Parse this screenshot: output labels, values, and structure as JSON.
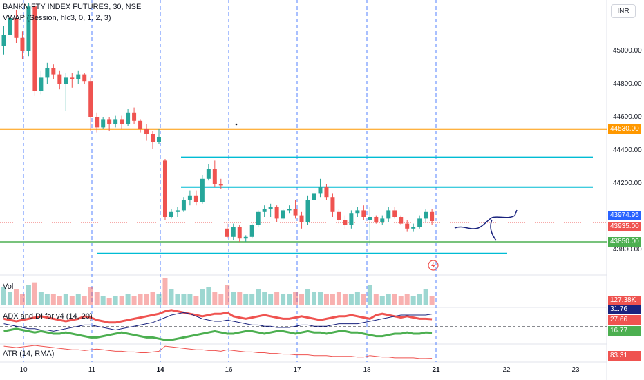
{
  "header": {
    "symbol_title": "BANKNIFTY INDEX FUTURES, 30, NSE",
    "indicator": "VWAP (Session, hlc3, 0, 1, 2, 3)",
    "currency": "INR"
  },
  "panes": {
    "vol_label": "Vol",
    "adx_label": "ADX and DI for v4 (14, 20)",
    "atr_label": "ATR (14, RMA)"
  },
  "chart_data": {
    "type": "candlestick",
    "ylim": [
      43720,
      45300
    ],
    "price_ticks": [
      "45000.00",
      "44800.00",
      "44600.00",
      "44400.00",
      "44200.00",
      "43800.00"
    ],
    "date_ticks": [
      "10",
      "11",
      "14",
      "16",
      "17",
      "18",
      "21",
      "22",
      "23"
    ],
    "badges": {
      "level_orange": "44530.00",
      "last_blue": "43974.95",
      "last_red": "43935.00",
      "level_green": "43850.00",
      "volume": "127.38K",
      "adx_a": "31.76",
      "adx_b": "27.66",
      "adx_c": "16.77",
      "atr": "83.31"
    },
    "levels": {
      "orange": 44530,
      "green": 43850,
      "cyan_1": 44360,
      "cyan_2": 44180,
      "cyan_3": 43780
    },
    "colors": {
      "up": "#26a69a",
      "down": "#ef5350",
      "orange": "#ff9800",
      "green": "#4caf50",
      "cyan": "#00bcd4",
      "blue": "#2962ff"
    },
    "candles": [
      [
        45030,
        45150,
        44980,
        45100
      ],
      [
        45100,
        45230,
        45080,
        45200
      ],
      [
        45200,
        45250,
        45050,
        45080
      ],
      [
        45080,
        45120,
        44950,
        45000
      ],
      [
        45000,
        45290,
        44970,
        45270
      ],
      [
        45270,
        45290,
        44730,
        44760
      ],
      [
        44760,
        44880,
        44740,
        44840
      ],
      [
        44840,
        44930,
        44800,
        44900
      ],
      [
        44900,
        44920,
        44830,
        44860
      ],
      [
        44860,
        44880,
        44770,
        44800
      ],
      [
        44800,
        44870,
        44640,
        44840
      ],
      [
        44840,
        44870,
        44780,
        44830
      ],
      [
        44830,
        44880,
        44800,
        44860
      ],
      [
        44860,
        44870,
        44800,
        44820
      ],
      [
        44820,
        44840,
        44520,
        44600
      ],
      [
        44600,
        44630,
        44510,
        44540
      ],
      [
        44540,
        44600,
        44530,
        44590
      ],
      [
        44590,
        44600,
        44520,
        44560
      ],
      [
        44560,
        44610,
        44540,
        44590
      ],
      [
        44590,
        44610,
        44530,
        44560
      ],
      [
        44560,
        44650,
        44550,
        44630
      ],
      [
        44630,
        44660,
        44560,
        44580
      ],
      [
        44580,
        44590,
        44510,
        44530
      ],
      [
        44530,
        44560,
        44460,
        44500
      ],
      [
        44500,
        44520,
        44410,
        44450
      ],
      [
        44450,
        44530,
        44440,
        44480
      ],
      [
        44340,
        44350,
        43980,
        44000
      ],
      [
        44000,
        44050,
        43990,
        44030
      ],
      [
        44030,
        44060,
        44000,
        44040
      ],
      [
        44040,
        44120,
        44030,
        44100
      ],
      [
        44100,
        44160,
        44070,
        44130
      ],
      [
        44130,
        44160,
        44070,
        44090
      ],
      [
        44090,
        44250,
        44080,
        44230
      ],
      [
        44230,
        44320,
        44220,
        44290
      ],
      [
        44290,
        44340,
        44180,
        44200
      ],
      [
        44200,
        44230,
        44170,
        44190
      ],
      [
        43930,
        43960,
        43870,
        43880
      ],
      [
        43880,
        43960,
        43860,
        43940
      ],
      [
        43940,
        43950,
        43850,
        43870
      ],
      [
        43870,
        43890,
        43850,
        43880
      ],
      [
        43880,
        43960,
        43870,
        43950
      ],
      [
        43950,
        44040,
        43940,
        44030
      ],
      [
        44030,
        44070,
        44000,
        44050
      ],
      [
        44050,
        44080,
        44000,
        44060
      ],
      [
        44060,
        44070,
        43970,
        43990
      ],
      [
        43990,
        44050,
        43980,
        44040
      ],
      [
        44040,
        44070,
        44020,
        44050
      ],
      [
        44050,
        44100,
        43990,
        44010
      ],
      [
        44010,
        44030,
        43930,
        43970
      ],
      [
        43970,
        44130,
        43950,
        44100
      ],
      [
        44100,
        44170,
        44070,
        44140
      ],
      [
        44140,
        44230,
        44120,
        44180
      ],
      [
        44180,
        44200,
        44100,
        44120
      ],
      [
        44120,
        44140,
        44000,
        44030
      ],
      [
        44030,
        44050,
        43960,
        43980
      ],
      [
        43980,
        44010,
        43930,
        43950
      ],
      [
        43950,
        44040,
        43930,
        44020
      ],
      [
        44020,
        44060,
        44000,
        44040
      ],
      [
        44040,
        44070,
        43980,
        44000
      ],
      [
        43980,
        44060,
        43830,
        44000
      ],
      [
        44000,
        44010,
        43960,
        43970
      ],
      [
        43970,
        44010,
        43950,
        43990
      ],
      [
        43990,
        44060,
        43970,
        44040
      ],
      [
        44040,
        44060,
        43990,
        44000
      ],
      [
        44000,
        44010,
        43950,
        43960
      ],
      [
        43960,
        43980,
        43910,
        43930
      ],
      [
        43930,
        43960,
        43910,
        43940
      ],
      [
        43940,
        44010,
        43930,
        43990
      ],
      [
        43990,
        44050,
        43970,
        44030
      ],
      [
        44030,
        44050,
        43950,
        43975
      ]
    ],
    "volume": [
      8,
      6,
      7,
      5,
      9,
      10,
      6,
      5,
      5,
      4,
      5,
      4,
      5,
      4,
      8,
      6,
      4,
      3,
      4,
      4,
      5,
      4,
      5,
      5,
      6,
      5,
      12,
      7,
      5,
      5,
      5,
      4,
      7,
      8,
      6,
      5,
      9,
      6,
      6,
      5,
      5,
      7,
      6,
      5,
      6,
      5,
      5,
      6,
      5,
      7,
      6,
      6,
      5,
      5,
      6,
      5,
      5,
      6,
      5,
      9,
      5,
      4,
      5,
      5,
      4,
      5,
      4,
      5,
      7,
      4
    ],
    "adx": [
      {
        "color": "#ef5350",
        "values": [
          28,
          27,
          26,
          27,
          28,
          29,
          30,
          29,
          28,
          27,
          26,
          27,
          28,
          30,
          29,
          27,
          26,
          25,
          25,
          26,
          27,
          28,
          29,
          30,
          31,
          32,
          34,
          35,
          34,
          33,
          32,
          31,
          30,
          31,
          32,
          32,
          33,
          30,
          29,
          28,
          29,
          30,
          31,
          30,
          29,
          28,
          28,
          29,
          30,
          29,
          28,
          27,
          28,
          29,
          30,
          30,
          31,
          30,
          29,
          28,
          31,
          32,
          31,
          30,
          29,
          30,
          29,
          28,
          28,
          27.66
        ]
      },
      {
        "color": "#4caf50",
        "values": [
          18,
          19,
          20,
          19,
          18,
          17,
          18,
          17,
          16,
          16,
          17,
          16,
          15,
          14,
          13,
          13,
          14,
          15,
          16,
          17,
          16,
          15,
          14,
          13,
          13,
          12,
          11,
          11,
          12,
          13,
          14,
          15,
          16,
          17,
          18,
          17,
          16,
          16,
          17,
          18,
          18,
          17,
          16,
          17,
          18,
          18,
          17,
          16,
          17,
          18,
          17,
          17,
          16,
          17,
          18,
          18,
          17,
          17,
          16,
          15,
          14,
          14,
          15,
          16,
          16,
          17,
          16,
          16,
          17,
          16.77
        ]
      },
      {
        "color": "#1a237e",
        "values": [
          24,
          23,
          22,
          21,
          20,
          20,
          19,
          19,
          18,
          19,
          20,
          21,
          22,
          23,
          23,
          22,
          21,
          20,
          19,
          20,
          21,
          22,
          23,
          24,
          25,
          27,
          29,
          31,
          32,
          33,
          32,
          30,
          28,
          27,
          26,
          26,
          27,
          26,
          25,
          24,
          23,
          23,
          22,
          22,
          21,
          21,
          21,
          22,
          23,
          23,
          22,
          22,
          22,
          23,
          24,
          24,
          24,
          24,
          25,
          26,
          27,
          28,
          29,
          30,
          31,
          31,
          31,
          31,
          31,
          31.76
        ]
      }
    ],
    "atr": [
      100,
      99,
      98,
      99,
      100,
      101,
      100,
      99,
      98,
      97,
      96,
      95,
      95,
      94,
      95,
      96,
      95,
      94,
      93,
      93,
      92,
      92,
      91,
      91,
      92,
      93,
      100,
      99,
      98,
      97,
      96,
      95,
      95,
      94,
      94,
      93,
      95,
      94,
      93,
      92,
      92,
      91,
      91,
      90,
      90,
      89,
      89,
      88,
      88,
      88,
      87,
      87,
      87,
      86,
      86,
      86,
      86,
      85,
      85,
      87,
      86,
      85,
      85,
      84,
      84,
      84,
      84,
      83,
      83,
      83.31
    ]
  }
}
